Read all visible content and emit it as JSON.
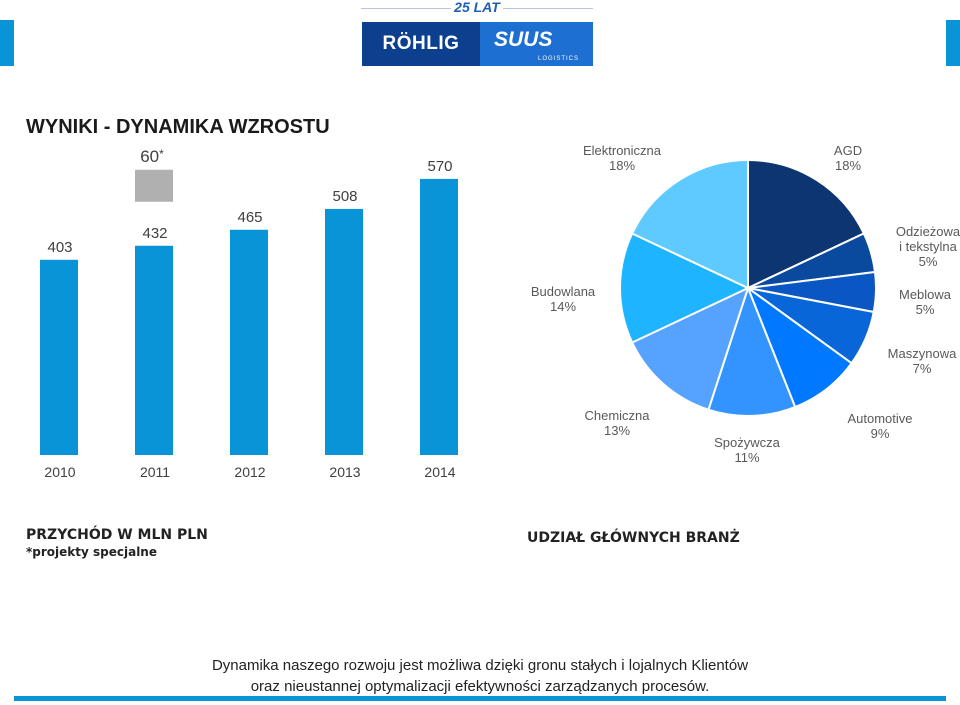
{
  "header": {
    "anniversary": "25 LAT",
    "logo_left": "RÖHLIG",
    "logo_right": "SUUS",
    "logo_right_sub": "LOGISTICS"
  },
  "title": "WYNIKI - DYNAMIKA WZROSTU",
  "revenue_caption": "PRZYCHÓD W MLN PLN",
  "revenue_note": "*projekty specjalne",
  "industry_caption": "UDZIAŁ GŁÓWNYCH BRANŻ",
  "footer": {
    "line1": "Dynamika naszego rozwoju jest możliwa dzięki gronu stałych i lojalnych Klientów",
    "line2": "oraz nieustannej optymalizacji efektywności zarządzanych procesów."
  },
  "colors": {
    "accent": "#0a94d8",
    "bar": "#0a94d8",
    "special": "#b0b0b0"
  },
  "chart_data": [
    {
      "type": "bar",
      "title": "",
      "categories": [
        "2010",
        "2011",
        "2012",
        "2013",
        "2014"
      ],
      "series": [
        {
          "name": "",
          "values": [
            403,
            432,
            465,
            508,
            570
          ]
        }
      ],
      "value_labels": [
        "403",
        "432",
        "465",
        "508",
        "570"
      ],
      "special_projects": {
        "category": "2011",
        "value": 60,
        "label": "60",
        "marker": "*"
      },
      "ylim": [
        0,
        640
      ],
      "grid": false
    },
    {
      "type": "pie",
      "title": "",
      "slices": [
        {
          "name": "AGD",
          "value": 18,
          "label": "18%",
          "color": "#0c3572"
        },
        {
          "name": "Odzieżowa i tekstylna",
          "value": 5,
          "label": "5%",
          "color": "#0a4a9e"
        },
        {
          "name": "Meblowa",
          "value": 5,
          "label": "5%",
          "color": "#0a56c2"
        },
        {
          "name": "Maszynowa",
          "value": 7,
          "label": "7%",
          "color": "#0866d8"
        },
        {
          "name": "Automotive",
          "value": 9,
          "label": "9%",
          "color": "#0078ff"
        },
        {
          "name": "Spożywcza",
          "value": 11,
          "label": "11%",
          "color": "#3394ff"
        },
        {
          "name": "Chemiczna",
          "value": 13,
          "label": "13%",
          "color": "#55a3ff"
        },
        {
          "name": "Budowlana",
          "value": 14,
          "label": "14%",
          "color": "#1fb4ff"
        },
        {
          "name": "Elektroniczna",
          "value": 18,
          "label": "18%",
          "color": "#5ecaff"
        }
      ]
    }
  ]
}
